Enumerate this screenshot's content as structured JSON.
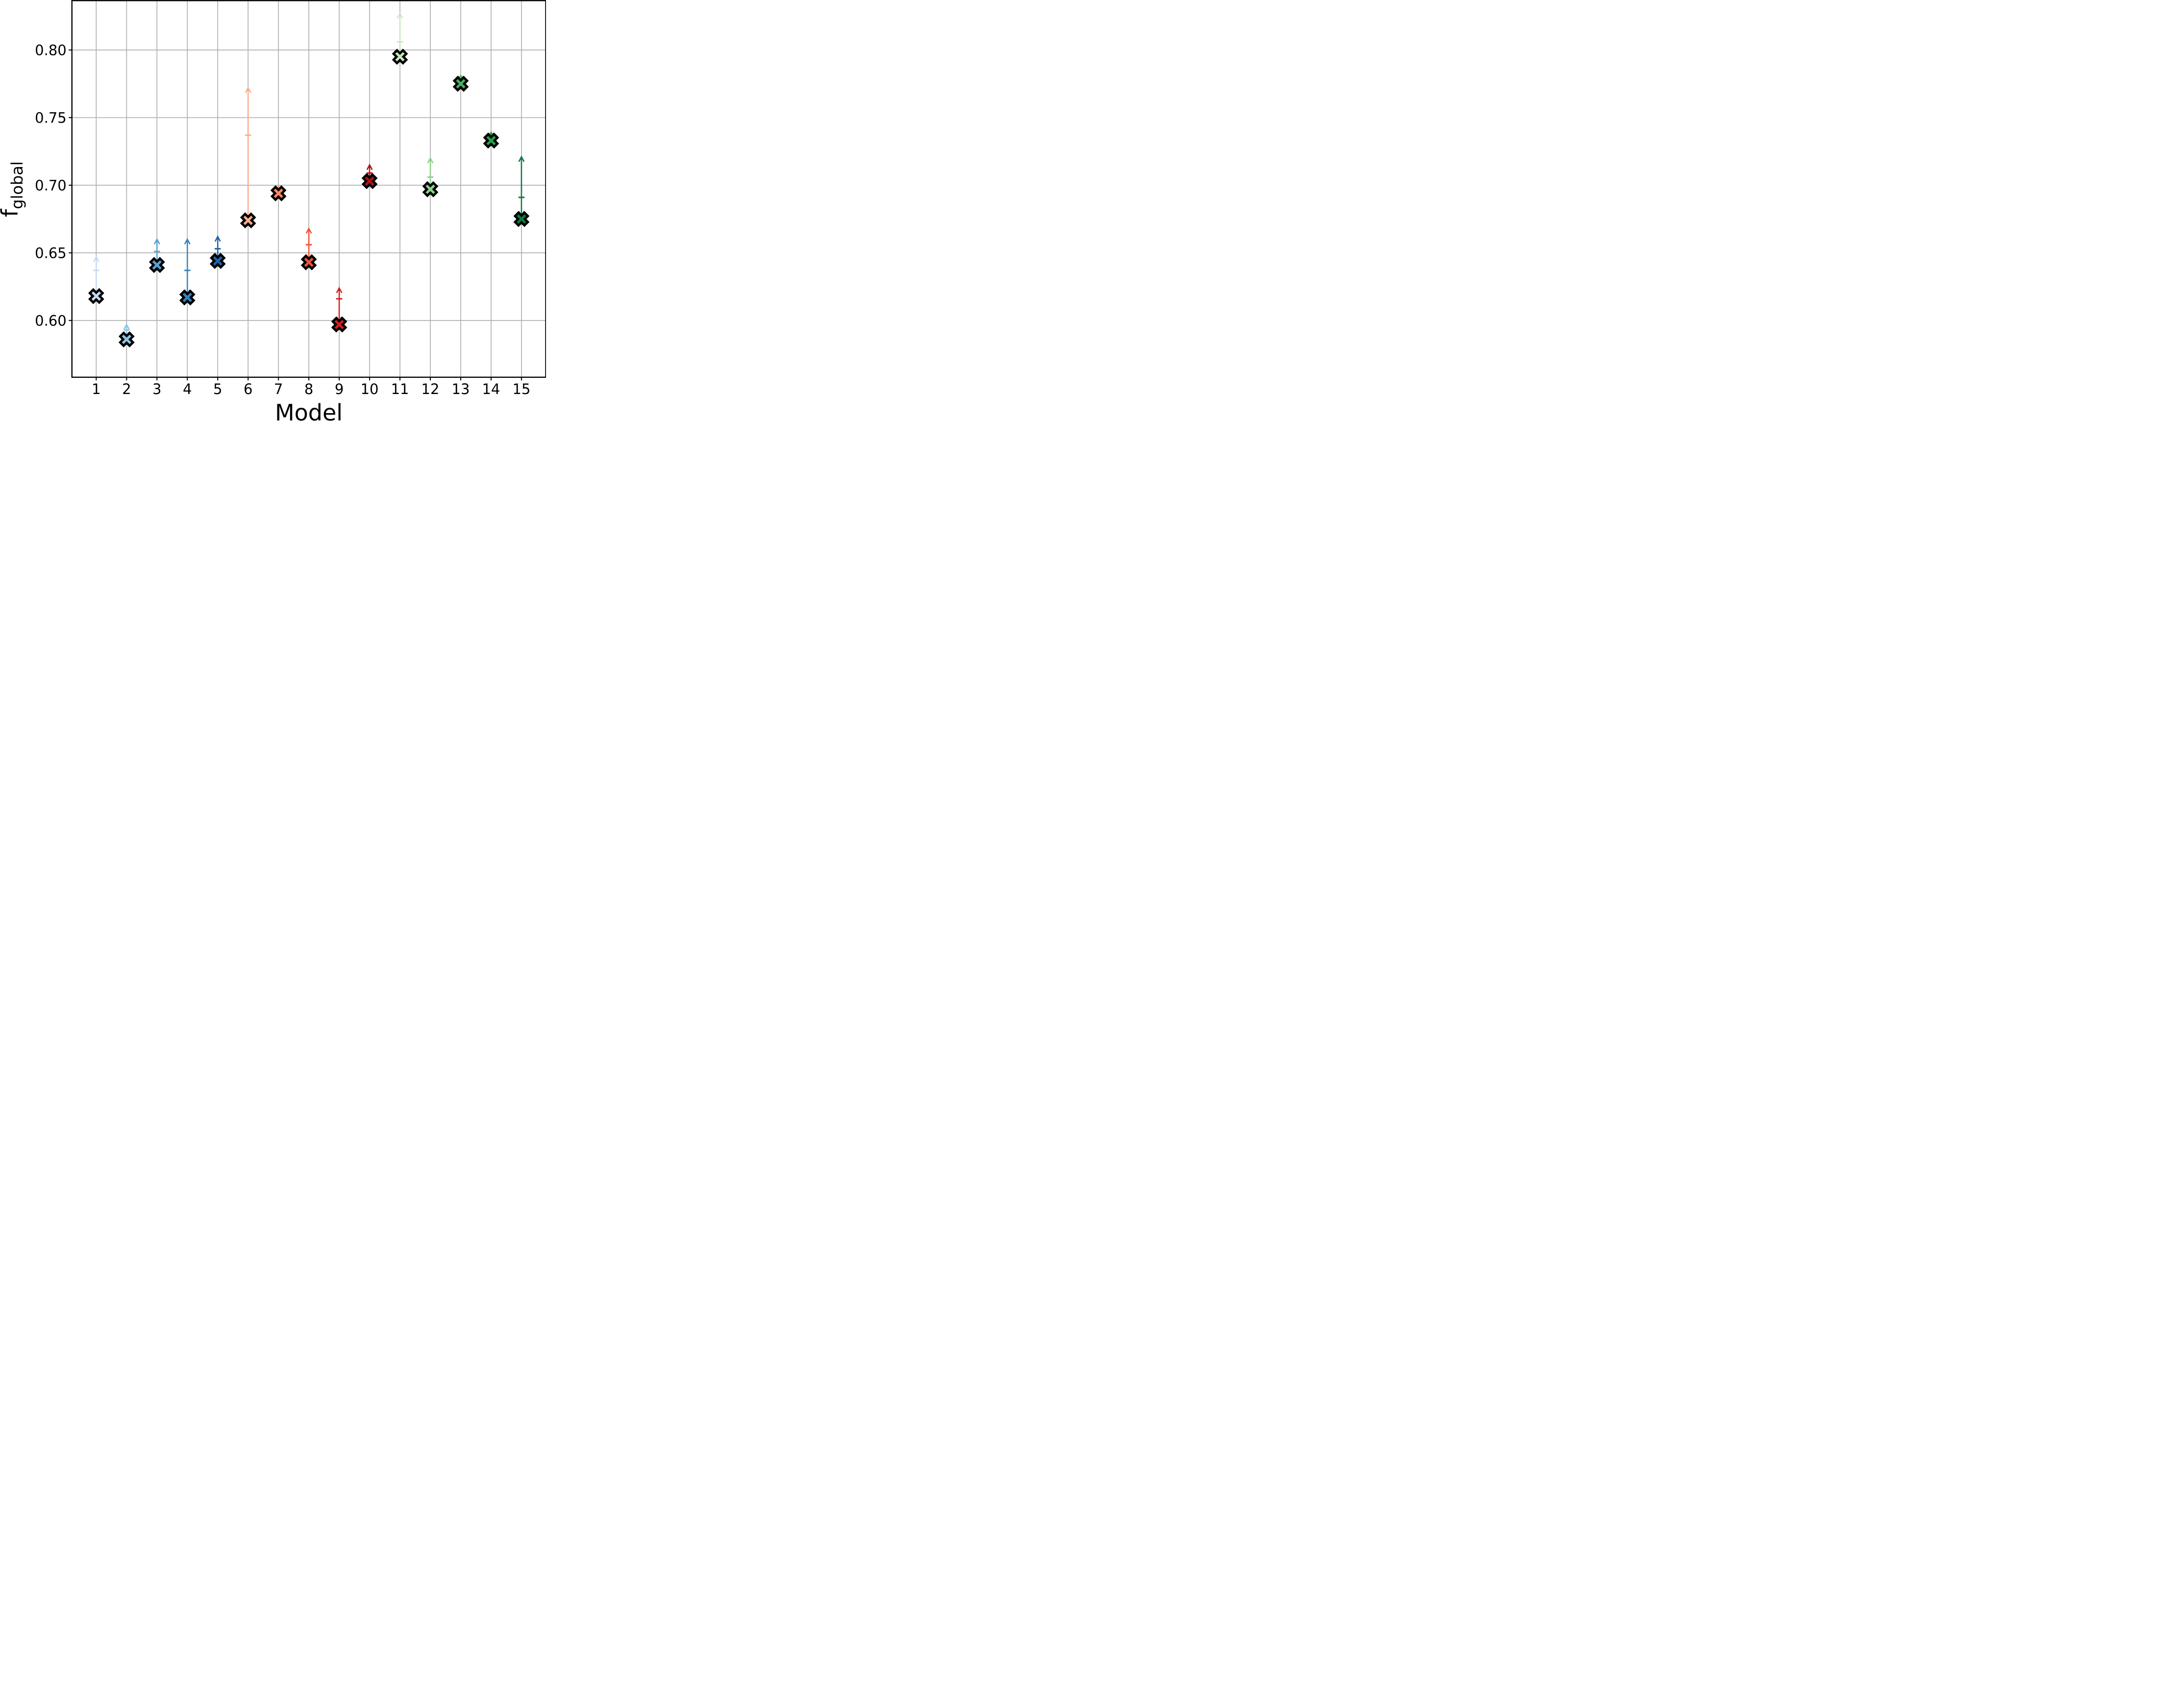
{
  "figure": {
    "background": "#ffffff"
  },
  "chart_data": {
    "type": "scatter",
    "title": "",
    "xlabel": "Model",
    "ylabel": "f_global",
    "ylabel_main": "f",
    "ylabel_sub": "global",
    "xlim": [
      0.2,
      15.8
    ],
    "ylim": [
      0.558,
      0.8365
    ],
    "xticks": [
      1,
      2,
      3,
      4,
      5,
      6,
      7,
      8,
      9,
      10,
      11,
      12,
      13,
      14,
      15
    ],
    "yticks": [
      0.6,
      0.65,
      0.7,
      0.75,
      0.8
    ],
    "ytick_labels": [
      "0.60",
      "0.65",
      "0.70",
      "0.75",
      "0.80"
    ],
    "grid": true,
    "grid_color": "#b0b0b0",
    "legend": "none",
    "marker": "X",
    "marker_edge_color": "#000000",
    "errorbar_style": "upward arrow with cap (upper-limit arrow)",
    "points": [
      {
        "model": 1,
        "value": 0.618,
        "cap": 0.637,
        "arrow_tip": 0.647,
        "color": "#c6dbef"
      },
      {
        "model": 2,
        "value": 0.586,
        "cap": 0.593,
        "arrow_tip": 0.597,
        "color": "#92c5de"
      },
      {
        "model": 3,
        "value": 0.641,
        "cap": 0.651,
        "arrow_tip": 0.66,
        "color": "#5aa2d0"
      },
      {
        "model": 4,
        "value": 0.617,
        "cap": 0.637,
        "arrow_tip": 0.66,
        "color": "#3485c0"
      },
      {
        "model": 5,
        "value": 0.644,
        "cap": 0.653,
        "arrow_tip": 0.662,
        "color": "#1c64aa"
      },
      {
        "model": 6,
        "value": 0.674,
        "cap": 0.737,
        "arrow_tip": 0.772,
        "color": "#fcab8c"
      },
      {
        "model": 7,
        "value": 0.694,
        "cap": 0.696,
        "arrow_tip": 0.699,
        "color": "#f98a67"
      },
      {
        "model": 8,
        "value": 0.643,
        "cap": 0.656,
        "arrow_tip": 0.668,
        "color": "#f25138"
      },
      {
        "model": 9,
        "value": 0.597,
        "cap": 0.616,
        "arrow_tip": 0.624,
        "color": "#d02122"
      },
      {
        "model": 10,
        "value": 0.703,
        "cap": 0.709,
        "arrow_tip": 0.715,
        "color": "#b01217"
      },
      {
        "model": 11,
        "value": 0.795,
        "cap": 0.806,
        "arrow_tip": 0.827,
        "color": "#c7e8bf"
      },
      {
        "model": 12,
        "value": 0.697,
        "cap": 0.706,
        "arrow_tip": 0.72,
        "color": "#8ed18b"
      },
      {
        "model": 13,
        "value": 0.775,
        "cap": 0.78,
        "arrow_tip": 0.781,
        "color": "#4bb062"
      },
      {
        "model": 14,
        "value": 0.733,
        "cap": 0.738,
        "arrow_tip": 0.739,
        "color": "#2d9e4e"
      },
      {
        "model": 15,
        "value": 0.675,
        "cap": 0.691,
        "arrow_tip": 0.721,
        "color": "#0c7b3e"
      }
    ]
  }
}
